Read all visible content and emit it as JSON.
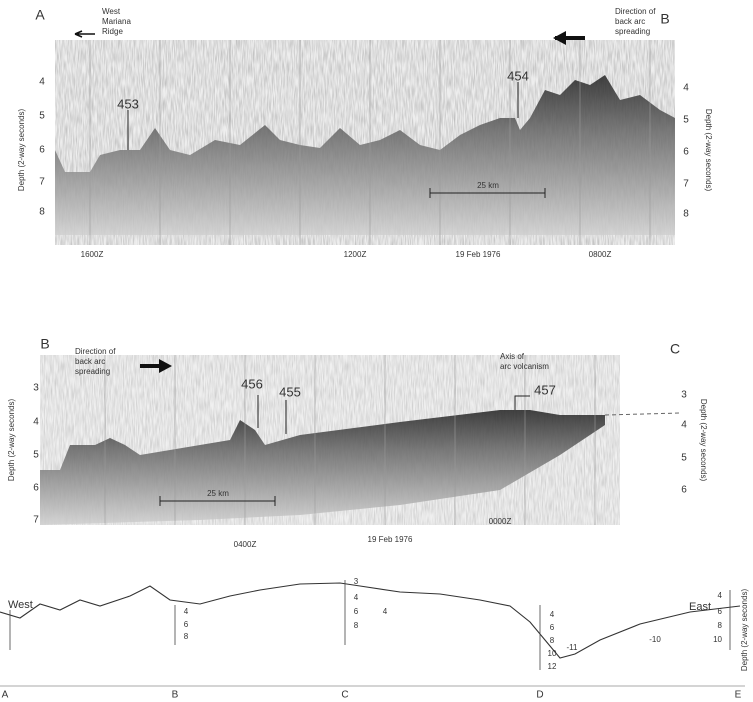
{
  "panel_top": {
    "left_label": "A",
    "right_label": "B",
    "ridge_label": [
      "West",
      "Mariana",
      "Ridge"
    ],
    "direction_label": [
      "Direction of",
      "back arc",
      "spreading"
    ],
    "sites": [
      "453",
      "454"
    ],
    "scale_label": "25 km",
    "time_labels": [
      "1600Z",
      "1200Z",
      "19 Feb 1976",
      "0800Z"
    ],
    "axis_title": "Depth (2-way seconds)",
    "left_ticks": [
      "4",
      "5",
      "6",
      "7",
      "8"
    ],
    "right_ticks": [
      "4",
      "5",
      "6",
      "7",
      "8"
    ]
  },
  "panel_middle": {
    "left_label": "B",
    "right_label": "C",
    "direction_label": [
      "Direction of",
      "back arc",
      "spreading"
    ],
    "axis_label": [
      "Axis of",
      "arc volcanism"
    ],
    "sites": [
      "456",
      "455",
      "457"
    ],
    "scale_label": "25 km",
    "time_labels": [
      "0400Z",
      "19 Feb 1976",
      "0000Z"
    ],
    "axis_title": "Depth (2-way seconds)",
    "left_ticks": [
      "3",
      "4",
      "5",
      "6",
      "7"
    ],
    "right_ticks": [
      "3",
      "4",
      "5",
      "6"
    ]
  },
  "panel_bottom": {
    "west_label": "West",
    "east_label": "East",
    "points": [
      "A",
      "B",
      "C",
      "D",
      "E"
    ],
    "scale_b": [
      "4",
      "6",
      "8"
    ],
    "scale_c": [
      "3",
      "4",
      "6",
      "8"
    ],
    "scale_d": [
      "4",
      "6",
      "8",
      "10",
      "12"
    ],
    "right_ticks": [
      "4",
      "6",
      "8",
      "10"
    ],
    "axis_title": "Depth (2-way seconds)",
    "contour_labels": [
      "4",
      "-11",
      "-10"
    ]
  }
}
